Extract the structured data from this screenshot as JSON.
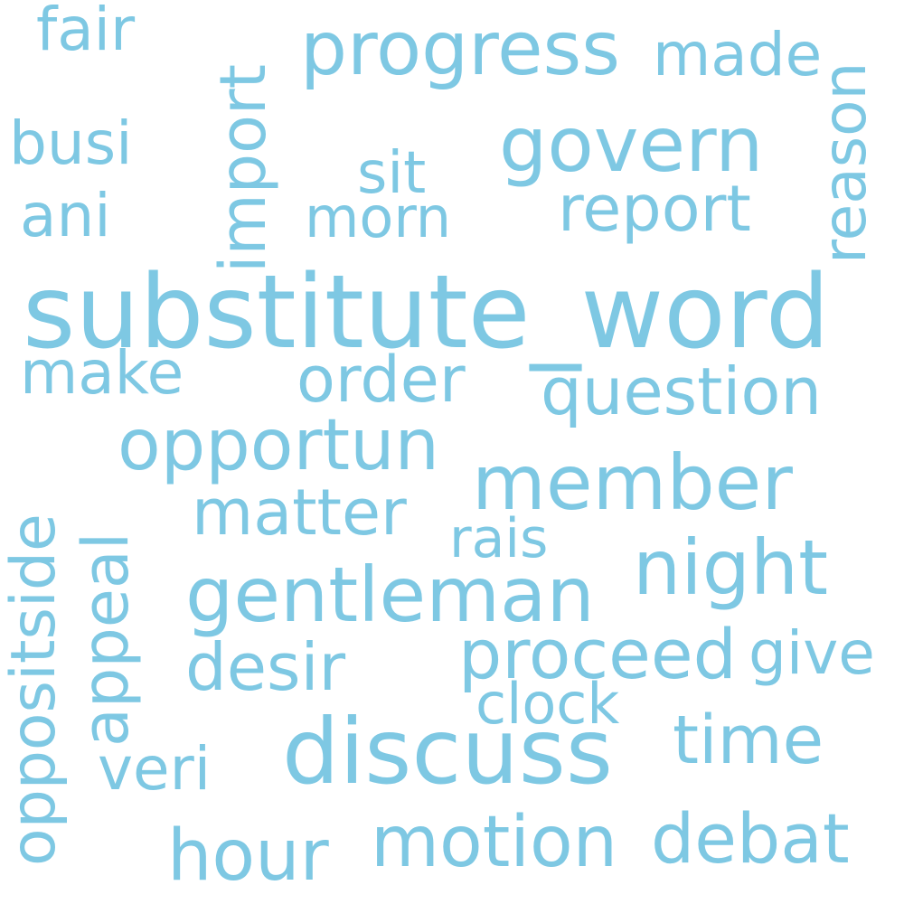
{
  "color": "#7ec8e3",
  "words": {
    "substitute_word": "substitute_word",
    "discuss": "discuss",
    "gentleman": "gentleman",
    "member": "member",
    "night": "night",
    "govern": "govern",
    "progress": "progress",
    "opportun": "opportun",
    "motion": "motion",
    "question": "question",
    "debat": "debat",
    "hour": "hour",
    "proceed": "proceed",
    "time": "time",
    "matter": "matter",
    "report": "report",
    "order": "order",
    "desir": "desir",
    "give": "give",
    "made": "made",
    "clock": "clock",
    "make": "make",
    "veri": "veri",
    "morn": "morn",
    "rais": "rais",
    "sit": "sit",
    "busi": "busi",
    "ani": "ani",
    "fair": "fair",
    "import": "import",
    "reason": "reason",
    "appeal": "appeal",
    "oppositside": "oppositside"
  }
}
